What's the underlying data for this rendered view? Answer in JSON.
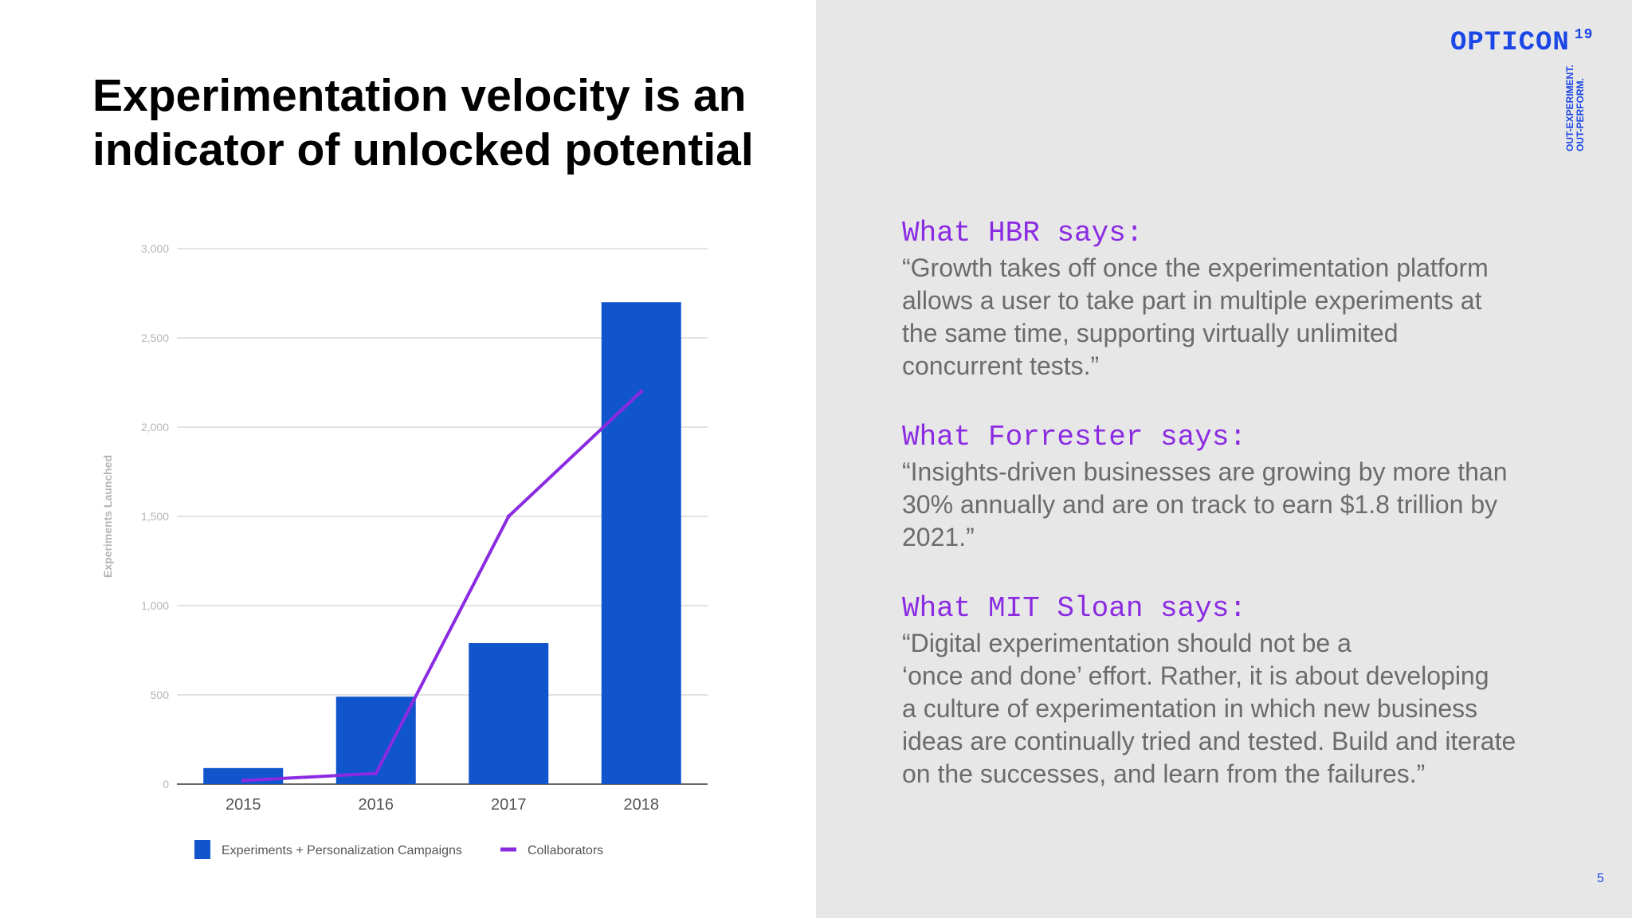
{
  "slide": {
    "title_lines": [
      "Experimentation velocity is an",
      "indicator of unlocked potential"
    ],
    "page_number": "5"
  },
  "brand": {
    "name": "OPTICON",
    "superscript": "19",
    "tagline_lines": [
      "OUT-EXPERIMENT.",
      "OUT-PERFORM."
    ],
    "color": "#1a47e6"
  },
  "quotes": [
    {
      "heading": "What HBR says:",
      "lines": [
        "“Growth takes off once the experimentation platform",
        "allows a user to take part in multiple experiments at",
        "the same time, supporting virtually unlimited",
        "concurrent tests.”"
      ]
    },
    {
      "heading": "What Forrester says:",
      "lines": [
        "“Insights-driven businesses are growing by more than",
        "30% annually and are on track to earn $1.8 trillion by",
        "2021.”"
      ]
    },
    {
      "heading": "What MIT Sloan says:",
      "lines": [
        "“Digital experimentation should not be a",
        "‘once and done’ effort. Rather, it is about developing",
        "a culture of experimentation in which new business",
        "ideas are continually tried and tested. Build and iterate",
        "on the successes, and learn from the failures.”"
      ]
    }
  ],
  "chart_data": {
    "type": "bar",
    "categories": [
      "2015",
      "2016",
      "2017",
      "2018"
    ],
    "series": [
      {
        "name": "Experiments + Personalization Campaigns",
        "type": "bar",
        "color": "#1155cc",
        "values": [
          90,
          490,
          790,
          2700
        ]
      },
      {
        "name": "Collaborators",
        "type": "line",
        "color": "#8a2be2",
        "values": [
          20,
          60,
          1500,
          2200
        ]
      }
    ],
    "ylabel": "Experiments Launched",
    "ylim": [
      0,
      3000
    ],
    "yticks": [
      0,
      500,
      1000,
      1500,
      2000,
      2500,
      3000
    ],
    "ytick_labels": [
      "0",
      "500",
      "1,000",
      "1,500",
      "2,000",
      "2,500",
      "3,000"
    ],
    "grid": true,
    "legend_position": "bottom"
  }
}
